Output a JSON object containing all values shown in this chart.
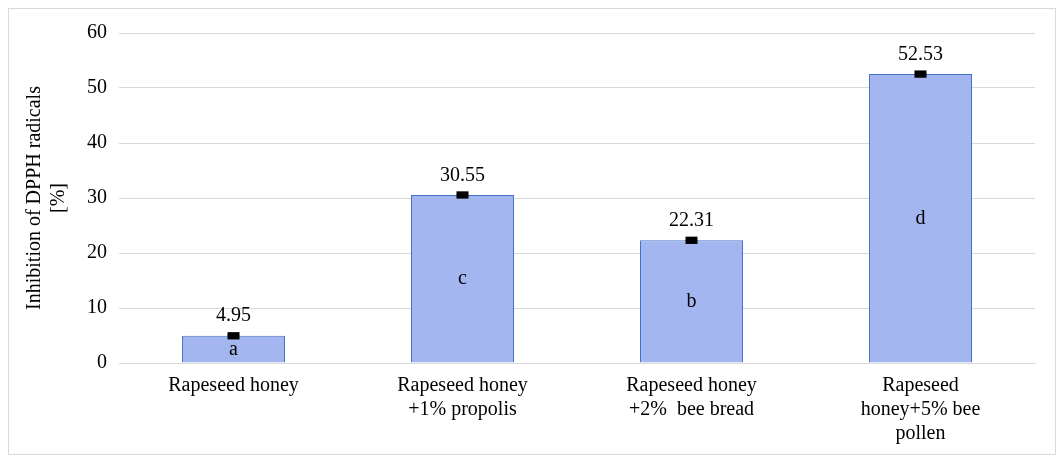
{
  "chart_data": {
    "type": "bar",
    "ylabel": "Inhibition of DPPH radicals [%]",
    "categories": [
      "Rapeseed honey",
      "Rapeseed honey +1% propolis",
      "Rapeseed honey +2%  bee bread",
      "Rapeseed honey+5% bee pollen"
    ],
    "values": [
      4.95,
      30.55,
      22.31,
      52.53
    ],
    "errors": [
      0.3,
      0.3,
      0.3,
      0.3
    ],
    "color": "#a4b6f0",
    "data_labels": true,
    "annotations": [
      "a",
      "c",
      "b",
      "d"
    ],
    "ylim": [
      0,
      60
    ],
    "yticks": [
      0,
      10,
      20,
      30,
      40,
      50,
      60
    ],
    "grid": "y",
    "legend": false
  }
}
